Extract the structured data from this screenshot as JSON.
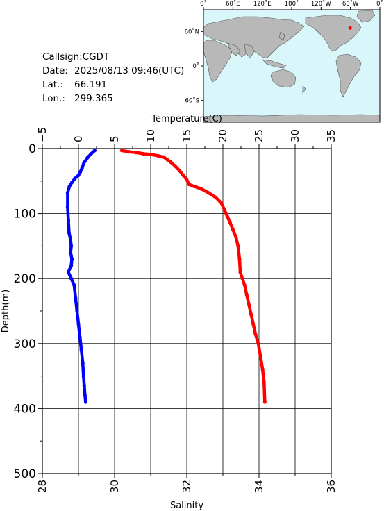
{
  "info": {
    "callsign": "Callsign:CGDT",
    "date_label": "Date:",
    "date_value": "2025/08/13 09:46(UTC)",
    "lat_label": "Lat.:",
    "lat_value": "66.191",
    "lon_label": "Lon.:",
    "lon_value": "299.365"
  },
  "map": {
    "lon_ticks": [
      "0˚",
      "60˚E",
      "120˚E",
      "180˚",
      "120˚W",
      "60˚W",
      "0˚"
    ],
    "lat_ticks": [
      "60˚N",
      "0˚",
      "60˚S"
    ],
    "ocean_color": "#d9f7fb",
    "land_color": "#b8b8b8",
    "station": {
      "lat": 66.191,
      "lon": 299.365,
      "color": "#ff0000"
    }
  },
  "chart_data": {
    "type": "line",
    "x_top_label": "Temperature(C)",
    "x_bottom_label": "Salinity",
    "ylabel": "Depth(m)",
    "temperature_range": [
      -5,
      35
    ],
    "temperature_ticks": [
      "−5",
      "0",
      "5",
      "10",
      "15",
      "20",
      "25",
      "30",
      "35"
    ],
    "salinity_range": [
      28,
      36
    ],
    "salinity_ticks": [
      "28",
      "30",
      "32",
      "34",
      "36"
    ],
    "depth_range": [
      0,
      500
    ],
    "depth_ticks": [
      "0",
      "100",
      "200",
      "300",
      "400",
      "500"
    ],
    "grid": true,
    "series": [
      {
        "name": "Temperature",
        "axis": "top",
        "color": "#ff0000",
        "x": [
          6.0,
          7.0,
          8.0,
          9.0,
          10.0,
          11.0,
          11.8,
          12.3,
          12.8,
          13.4,
          14.0,
          14.5,
          15.0,
          15.3,
          16.0,
          17.0,
          18.0,
          19.0,
          19.8,
          20.2,
          20.6,
          21.0,
          21.4,
          21.8,
          22.1,
          22.3,
          22.4,
          22.7,
          23.0,
          23.3,
          23.6,
          23.9,
          24.2,
          24.5,
          24.9,
          25.2,
          25.5,
          25.7,
          25.8
        ],
        "y": [
          3,
          5,
          6,
          8,
          9,
          11,
          13,
          17,
          21,
          27,
          34,
          41,
          48,
          55,
          58,
          62,
          68,
          75,
          84,
          94,
          104,
          114,
          125,
          136,
          150,
          170,
          190,
          200,
          210,
          225,
          240,
          255,
          270,
          285,
          300,
          320,
          340,
          360,
          390
        ]
      },
      {
        "name": "Salinity",
        "axis": "bottom",
        "color": "#0000ff",
        "x": [
          29.45,
          29.35,
          29.25,
          29.15,
          29.1,
          29.05,
          29.0,
          28.9,
          28.82,
          28.75,
          28.7,
          28.7,
          28.72,
          28.74,
          28.78,
          28.8,
          28.78,
          28.82,
          28.8,
          28.72,
          28.8,
          28.88,
          28.92,
          28.96,
          29.0,
          29.04,
          29.08,
          29.12,
          29.14,
          29.16,
          29.18,
          29.2
        ],
        "y": [
          3,
          8,
          14,
          22,
          30,
          36,
          41,
          46,
          52,
          58,
          68,
          90,
          110,
          130,
          140,
          150,
          160,
          170,
          180,
          190,
          200,
          210,
          230,
          250,
          270,
          290,
          310,
          330,
          350,
          365,
          380,
          390
        ]
      }
    ]
  }
}
